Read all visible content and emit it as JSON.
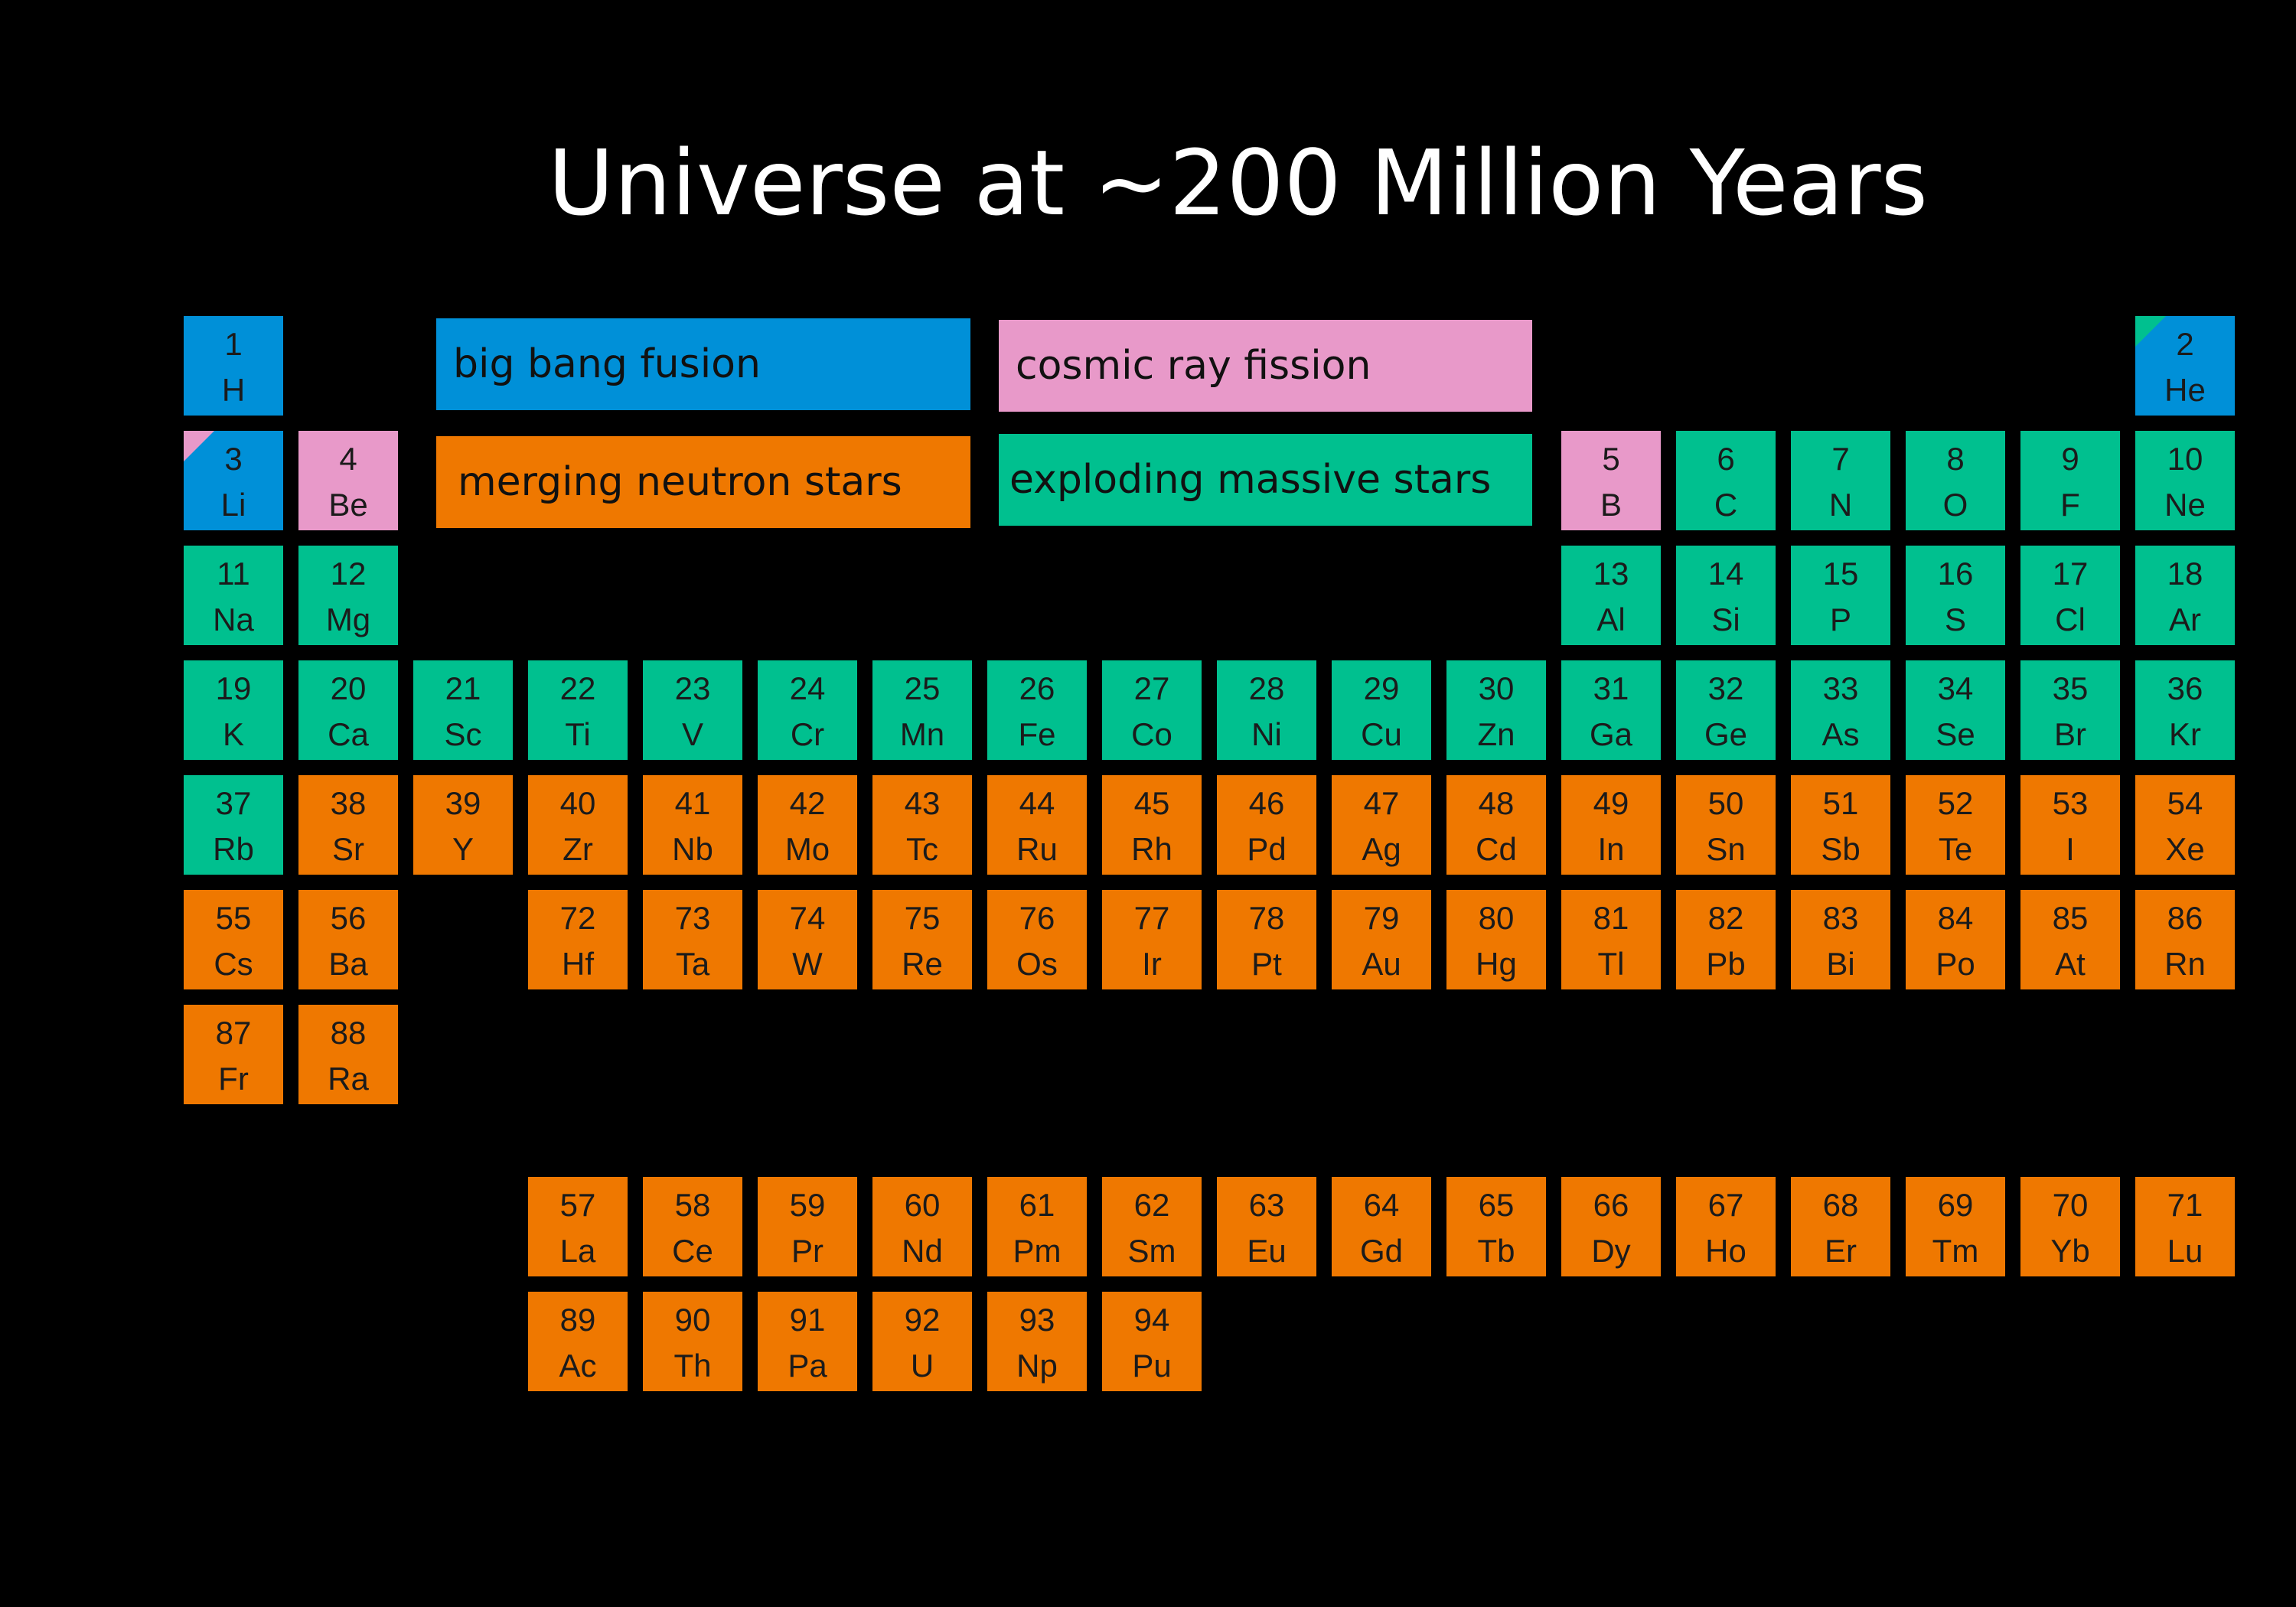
{
  "title": "Universe at ~200 Million Years",
  "colors": {
    "big_bang_fusion": "#0090d8",
    "cosmic_ray_fission": "#e899c9",
    "merging_neutron_stars": "#ef7800",
    "exploding_massive_stars": "#00c08f"
  },
  "legend": [
    {
      "key": "big_bang_fusion",
      "label": "big bang fusion"
    },
    {
      "key": "cosmic_ray_fission",
      "label": "cosmic ray fission"
    },
    {
      "key": "merging_neutron_stars",
      "label": "merging neutron stars"
    },
    {
      "key": "exploding_massive_stars",
      "label": "exploding massive stars"
    }
  ],
  "elements": [
    {
      "n": "1",
      "s": "H",
      "c": "big_bang_fusion",
      "p": 1,
      "g": 1
    },
    {
      "n": "2",
      "s": "He",
      "c": "big_bang_fusion",
      "corner": "exploding_massive_stars",
      "p": 1,
      "g": 18
    },
    {
      "n": "3",
      "s": "Li",
      "c": "big_bang_fusion",
      "corner": "cosmic_ray_fission",
      "p": 2,
      "g": 1
    },
    {
      "n": "4",
      "s": "Be",
      "c": "cosmic_ray_fission",
      "p": 2,
      "g": 2
    },
    {
      "n": "5",
      "s": "B",
      "c": "cosmic_ray_fission",
      "p": 2,
      "g": 13
    },
    {
      "n": "6",
      "s": "C",
      "c": "exploding_massive_stars",
      "p": 2,
      "g": 14
    },
    {
      "n": "7",
      "s": "N",
      "c": "exploding_massive_stars",
      "p": 2,
      "g": 15
    },
    {
      "n": "8",
      "s": "O",
      "c": "exploding_massive_stars",
      "p": 2,
      "g": 16
    },
    {
      "n": "9",
      "s": "F",
      "c": "exploding_massive_stars",
      "p": 2,
      "g": 17
    },
    {
      "n": "10",
      "s": "Ne",
      "c": "exploding_massive_stars",
      "p": 2,
      "g": 18
    },
    {
      "n": "11",
      "s": "Na",
      "c": "exploding_massive_stars",
      "p": 3,
      "g": 1
    },
    {
      "n": "12",
      "s": "Mg",
      "c": "exploding_massive_stars",
      "p": 3,
      "g": 2
    },
    {
      "n": "13",
      "s": "Al",
      "c": "exploding_massive_stars",
      "p": 3,
      "g": 13
    },
    {
      "n": "14",
      "s": "Si",
      "c": "exploding_massive_stars",
      "p": 3,
      "g": 14
    },
    {
      "n": "15",
      "s": "P",
      "c": "exploding_massive_stars",
      "p": 3,
      "g": 15
    },
    {
      "n": "16",
      "s": "S",
      "c": "exploding_massive_stars",
      "p": 3,
      "g": 16
    },
    {
      "n": "17",
      "s": "Cl",
      "c": "exploding_massive_stars",
      "p": 3,
      "g": 17
    },
    {
      "n": "18",
      "s": "Ar",
      "c": "exploding_massive_stars",
      "p": 3,
      "g": 18
    },
    {
      "n": "19",
      "s": "K",
      "c": "exploding_massive_stars",
      "p": 4,
      "g": 1
    },
    {
      "n": "20",
      "s": "Ca",
      "c": "exploding_massive_stars",
      "p": 4,
      "g": 2
    },
    {
      "n": "21",
      "s": "Sc",
      "c": "exploding_massive_stars",
      "p": 4,
      "g": 3
    },
    {
      "n": "22",
      "s": "Ti",
      "c": "exploding_massive_stars",
      "p": 4,
      "g": 4
    },
    {
      "n": "23",
      "s": "V",
      "c": "exploding_massive_stars",
      "p": 4,
      "g": 5
    },
    {
      "n": "24",
      "s": "Cr",
      "c": "exploding_massive_stars",
      "p": 4,
      "g": 6
    },
    {
      "n": "25",
      "s": "Mn",
      "c": "exploding_massive_stars",
      "p": 4,
      "g": 7
    },
    {
      "n": "26",
      "s": "Fe",
      "c": "exploding_massive_stars",
      "p": 4,
      "g": 8
    },
    {
      "n": "27",
      "s": "Co",
      "c": "exploding_massive_stars",
      "p": 4,
      "g": 9
    },
    {
      "n": "28",
      "s": "Ni",
      "c": "exploding_massive_stars",
      "p": 4,
      "g": 10
    },
    {
      "n": "29",
      "s": "Cu",
      "c": "exploding_massive_stars",
      "p": 4,
      "g": 11
    },
    {
      "n": "30",
      "s": "Zn",
      "c": "exploding_massive_stars",
      "p": 4,
      "g": 12
    },
    {
      "n": "31",
      "s": "Ga",
      "c": "exploding_massive_stars",
      "p": 4,
      "g": 13
    },
    {
      "n": "32",
      "s": "Ge",
      "c": "exploding_massive_stars",
      "p": 4,
      "g": 14
    },
    {
      "n": "33",
      "s": "As",
      "c": "exploding_massive_stars",
      "p": 4,
      "g": 15
    },
    {
      "n": "34",
      "s": "Se",
      "c": "exploding_massive_stars",
      "p": 4,
      "g": 16
    },
    {
      "n": "35",
      "s": "Br",
      "c": "exploding_massive_stars",
      "p": 4,
      "g": 17
    },
    {
      "n": "36",
      "s": "Kr",
      "c": "exploding_massive_stars",
      "p": 4,
      "g": 18
    },
    {
      "n": "37",
      "s": "Rb",
      "c": "exploding_massive_stars",
      "p": 5,
      "g": 1
    },
    {
      "n": "38",
      "s": "Sr",
      "c": "merging_neutron_stars",
      "p": 5,
      "g": 2
    },
    {
      "n": "39",
      "s": "Y",
      "c": "merging_neutron_stars",
      "p": 5,
      "g": 3
    },
    {
      "n": "40",
      "s": "Zr",
      "c": "merging_neutron_stars",
      "p": 5,
      "g": 4
    },
    {
      "n": "41",
      "s": "Nb",
      "c": "merging_neutron_stars",
      "p": 5,
      "g": 5
    },
    {
      "n": "42",
      "s": "Mo",
      "c": "merging_neutron_stars",
      "p": 5,
      "g": 6
    },
    {
      "n": "43",
      "s": "Tc",
      "c": "merging_neutron_stars",
      "p": 5,
      "g": 7
    },
    {
      "n": "44",
      "s": "Ru",
      "c": "merging_neutron_stars",
      "p": 5,
      "g": 8
    },
    {
      "n": "45",
      "s": "Rh",
      "c": "merging_neutron_stars",
      "p": 5,
      "g": 9
    },
    {
      "n": "46",
      "s": "Pd",
      "c": "merging_neutron_stars",
      "p": 5,
      "g": 10
    },
    {
      "n": "47",
      "s": "Ag",
      "c": "merging_neutron_stars",
      "p": 5,
      "g": 11
    },
    {
      "n": "48",
      "s": "Cd",
      "c": "merging_neutron_stars",
      "p": 5,
      "g": 12
    },
    {
      "n": "49",
      "s": "In",
      "c": "merging_neutron_stars",
      "p": 5,
      "g": 13
    },
    {
      "n": "50",
      "s": "Sn",
      "c": "merging_neutron_stars",
      "p": 5,
      "g": 14
    },
    {
      "n": "51",
      "s": "Sb",
      "c": "merging_neutron_stars",
      "p": 5,
      "g": 15
    },
    {
      "n": "52",
      "s": "Te",
      "c": "merging_neutron_stars",
      "p": 5,
      "g": 16
    },
    {
      "n": "53",
      "s": "I",
      "c": "merging_neutron_stars",
      "p": 5,
      "g": 17
    },
    {
      "n": "54",
      "s": "Xe",
      "c": "merging_neutron_stars",
      "p": 5,
      "g": 18
    },
    {
      "n": "55",
      "s": "Cs",
      "c": "merging_neutron_stars",
      "p": 6,
      "g": 1
    },
    {
      "n": "56",
      "s": "Ba",
      "c": "merging_neutron_stars",
      "p": 6,
      "g": 2
    },
    {
      "n": "72",
      "s": "Hf",
      "c": "merging_neutron_stars",
      "p": 6,
      "g": 4
    },
    {
      "n": "73",
      "s": "Ta",
      "c": "merging_neutron_stars",
      "p": 6,
      "g": 5
    },
    {
      "n": "74",
      "s": "W",
      "c": "merging_neutron_stars",
      "p": 6,
      "g": 6
    },
    {
      "n": "75",
      "s": "Re",
      "c": "merging_neutron_stars",
      "p": 6,
      "g": 7
    },
    {
      "n": "76",
      "s": "Os",
      "c": "merging_neutron_stars",
      "p": 6,
      "g": 8
    },
    {
      "n": "77",
      "s": "Ir",
      "c": "merging_neutron_stars",
      "p": 6,
      "g": 9
    },
    {
      "n": "78",
      "s": "Pt",
      "c": "merging_neutron_stars",
      "p": 6,
      "g": 10
    },
    {
      "n": "79",
      "s": "Au",
      "c": "merging_neutron_stars",
      "p": 6,
      "g": 11
    },
    {
      "n": "80",
      "s": "Hg",
      "c": "merging_neutron_stars",
      "p": 6,
      "g": 12
    },
    {
      "n": "81",
      "s": "Tl",
      "c": "merging_neutron_stars",
      "p": 6,
      "g": 13
    },
    {
      "n": "82",
      "s": "Pb",
      "c": "merging_neutron_stars",
      "p": 6,
      "g": 14
    },
    {
      "n": "83",
      "s": "Bi",
      "c": "merging_neutron_stars",
      "p": 6,
      "g": 15
    },
    {
      "n": "84",
      "s": "Po",
      "c": "merging_neutron_stars",
      "p": 6,
      "g": 16
    },
    {
      "n": "85",
      "s": "At",
      "c": "merging_neutron_stars",
      "p": 6,
      "g": 17
    },
    {
      "n": "86",
      "s": "Rn",
      "c": "merging_neutron_stars",
      "p": 6,
      "g": 18
    },
    {
      "n": "87",
      "s": "Fr",
      "c": "merging_neutron_stars",
      "p": 7,
      "g": 1
    },
    {
      "n": "88",
      "s": "Ra",
      "c": "merging_neutron_stars",
      "p": 7,
      "g": 2
    },
    {
      "n": "57",
      "s": "La",
      "c": "merging_neutron_stars",
      "p": 8,
      "g": 4
    },
    {
      "n": "58",
      "s": "Ce",
      "c": "merging_neutron_stars",
      "p": 8,
      "g": 5
    },
    {
      "n": "59",
      "s": "Pr",
      "c": "merging_neutron_stars",
      "p": 8,
      "g": 6
    },
    {
      "n": "60",
      "s": "Nd",
      "c": "merging_neutron_stars",
      "p": 8,
      "g": 7
    },
    {
      "n": "61",
      "s": "Pm",
      "c": "merging_neutron_stars",
      "p": 8,
      "g": 8
    },
    {
      "n": "62",
      "s": "Sm",
      "c": "merging_neutron_stars",
      "p": 8,
      "g": 9
    },
    {
      "n": "63",
      "s": "Eu",
      "c": "merging_neutron_stars",
      "p": 8,
      "g": 10
    },
    {
      "n": "64",
      "s": "Gd",
      "c": "merging_neutron_stars",
      "p": 8,
      "g": 11
    },
    {
      "n": "65",
      "s": "Tb",
      "c": "merging_neutron_stars",
      "p": 8,
      "g": 12
    },
    {
      "n": "66",
      "s": "Dy",
      "c": "merging_neutron_stars",
      "p": 8,
      "g": 13
    },
    {
      "n": "67",
      "s": "Ho",
      "c": "merging_neutron_stars",
      "p": 8,
      "g": 14
    },
    {
      "n": "68",
      "s": "Er",
      "c": "merging_neutron_stars",
      "p": 8,
      "g": 15
    },
    {
      "n": "69",
      "s": "Tm",
      "c": "merging_neutron_stars",
      "p": 8,
      "g": 16
    },
    {
      "n": "70",
      "s": "Yb",
      "c": "merging_neutron_stars",
      "p": 8,
      "g": 17
    },
    {
      "n": "71",
      "s": "Lu",
      "c": "merging_neutron_stars",
      "p": 8,
      "g": 18
    },
    {
      "n": "89",
      "s": "Ac",
      "c": "merging_neutron_stars",
      "p": 9,
      "g": 4
    },
    {
      "n": "90",
      "s": "Th",
      "c": "merging_neutron_stars",
      "p": 9,
      "g": 5
    },
    {
      "n": "91",
      "s": "Pa",
      "c": "merging_neutron_stars",
      "p": 9,
      "g": 6
    },
    {
      "n": "92",
      "s": "U",
      "c": "merging_neutron_stars",
      "p": 9,
      "g": 7
    },
    {
      "n": "93",
      "s": "Np",
      "c": "merging_neutron_stars",
      "p": 9,
      "g": 8
    },
    {
      "n": "94",
      "s": "Pu",
      "c": "merging_neutron_stars",
      "p": 9,
      "g": 9
    }
  ]
}
